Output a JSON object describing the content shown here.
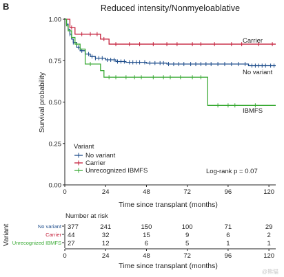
{
  "panel_letter": "B",
  "watermark": "@熊猫",
  "chart_data": {
    "type": "line",
    "subtype": "kaplan-meier",
    "title": "Reduced intensity/Nonmyeloablative",
    "xlabel": "Time since transplant (months)",
    "ylabel": "Survival probability",
    "xlim": [
      0,
      124
    ],
    "ylim": [
      0,
      1
    ],
    "x_ticks": [
      0,
      24,
      48,
      72,
      96,
      120
    ],
    "y_ticks": [
      0.0,
      0.25,
      0.5,
      0.75,
      1.0
    ],
    "y_tick_labels": [
      "0.00",
      "0.25",
      "0.50",
      "0.75",
      "1.00"
    ],
    "grid": false,
    "legend": {
      "title": "Variant",
      "placement": "bottom-left",
      "entries": [
        "No variant",
        "Carrier",
        "Unrecognized IBMFS"
      ]
    },
    "annotation": "Log-rank p = 0.07",
    "series": [
      {
        "name": "No variant",
        "label": "No variant",
        "color": "#1f4e8c",
        "steps": [
          [
            0,
            1.0
          ],
          [
            1,
            0.97
          ],
          [
            2,
            0.94
          ],
          [
            3,
            0.91
          ],
          [
            4,
            0.88
          ],
          [
            5,
            0.86
          ],
          [
            7,
            0.83
          ],
          [
            9,
            0.81
          ],
          [
            12,
            0.79
          ],
          [
            15,
            0.775
          ],
          [
            18,
            0.765
          ],
          [
            24,
            0.755
          ],
          [
            30,
            0.745
          ],
          [
            36,
            0.74
          ],
          [
            48,
            0.735
          ],
          [
            60,
            0.73
          ],
          [
            72,
            0.73
          ],
          [
            96,
            0.73
          ],
          [
            108,
            0.72
          ],
          [
            124,
            0.72
          ]
        ],
        "censors": [
          3,
          5,
          8,
          10,
          12,
          14,
          16,
          18,
          20,
          22,
          25,
          27,
          29,
          31,
          33,
          35,
          38,
          40,
          42,
          44,
          47,
          50,
          53,
          56,
          58,
          61,
          64,
          67,
          70,
          74,
          77,
          80,
          83,
          86,
          90,
          94,
          98,
          102,
          106,
          110,
          112,
          114,
          116,
          118,
          121,
          123
        ]
      },
      {
        "name": "Carrier",
        "label": "Carrier",
        "color": "#c41e3a",
        "steps": [
          [
            0,
            1.0
          ],
          [
            3,
            0.95
          ],
          [
            6,
            0.91
          ],
          [
            21,
            0.88
          ],
          [
            26,
            0.85
          ],
          [
            124,
            0.85
          ]
        ],
        "censors": [
          4,
          10,
          15,
          19,
          23,
          30,
          38,
          44,
          52,
          60,
          66,
          75,
          80,
          88,
          98,
          104,
          114,
          122
        ]
      },
      {
        "name": "Unrecognized IBMFS",
        "label": "IBMFS",
        "color": "#3aaa35",
        "steps": [
          [
            0,
            1.0
          ],
          [
            1,
            0.96
          ],
          [
            2,
            0.93
          ],
          [
            4,
            0.89
          ],
          [
            6,
            0.85
          ],
          [
            9,
            0.82
          ],
          [
            12,
            0.73
          ],
          [
            21,
            0.69
          ],
          [
            23,
            0.65
          ],
          [
            83,
            0.65
          ],
          [
            84,
            0.48
          ],
          [
            124,
            0.48
          ]
        ],
        "censors": [
          7,
          15,
          26,
          30,
          36,
          41,
          45,
          52,
          58,
          62,
          68,
          75,
          80,
          90,
          96,
          100,
          112
        ]
      }
    ],
    "risk_table": {
      "title": "Number at risk",
      "side_label": "Variant",
      "rows": [
        {
          "name": "No variant",
          "color": "#1f4e8c",
          "values": [
            377,
            241,
            150,
            100,
            71,
            29
          ]
        },
        {
          "name": "Carrier",
          "color": "#c41e3a",
          "values": [
            44,
            32,
            15,
            9,
            6,
            2
          ]
        },
        {
          "name": "Unrecognized IBMFS",
          "color": "#3aaa35",
          "values": [
            27,
            12,
            6,
            5,
            1,
            1
          ]
        }
      ],
      "times": [
        0,
        24,
        48,
        72,
        96,
        120
      ],
      "xlabel": "Time since transplant (months)"
    }
  }
}
